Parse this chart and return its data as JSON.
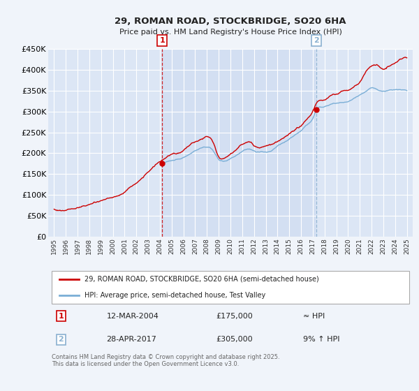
{
  "title": "29, ROMAN ROAD, STOCKBRIDGE, SO20 6HA",
  "subtitle": "Price paid vs. HM Land Registry's House Price Index (HPI)",
  "bg_color": "#f0f4fa",
  "plot_bg_color": "#dce6f5",
  "plot_bg_highlight": "#ccd9f0",
  "grid_color": "#ffffff",
  "hpi_line_color": "#7aaed6",
  "price_line_color": "#cc0000",
  "marker1_date_num": 2004.19,
  "marker1_value": 175000,
  "marker2_date_num": 2017.32,
  "marker2_value": 305000,
  "vline1_x": 2004.19,
  "vline2_x": 2017.32,
  "ylim": [
    0,
    450000
  ],
  "xlim": [
    1994.5,
    2025.5
  ],
  "yticks": [
    0,
    50000,
    100000,
    150000,
    200000,
    250000,
    300000,
    350000,
    400000,
    450000
  ],
  "ytick_labels": [
    "£0",
    "£50K",
    "£100K",
    "£150K",
    "£200K",
    "£250K",
    "£300K",
    "£350K",
    "£400K",
    "£450K"
  ],
  "xticks": [
    1995,
    1996,
    1997,
    1998,
    1999,
    2000,
    2001,
    2002,
    2003,
    2004,
    2005,
    2006,
    2007,
    2008,
    2009,
    2010,
    2011,
    2012,
    2013,
    2014,
    2015,
    2016,
    2017,
    2018,
    2019,
    2020,
    2021,
    2022,
    2023,
    2024,
    2025
  ],
  "legend_label1": "29, ROMAN ROAD, STOCKBRIDGE, SO20 6HA (semi-detached house)",
  "legend_label2": "HPI: Average price, semi-detached house, Test Valley",
  "table_row1": [
    "1",
    "12-MAR-2004",
    "£175,000",
    "≈ HPI"
  ],
  "table_row2": [
    "2",
    "28-APR-2017",
    "£305,000",
    "9% ↑ HPI"
  ],
  "footer": "Contains HM Land Registry data © Crown copyright and database right 2025.\nThis data is licensed under the Open Government Licence v3.0."
}
